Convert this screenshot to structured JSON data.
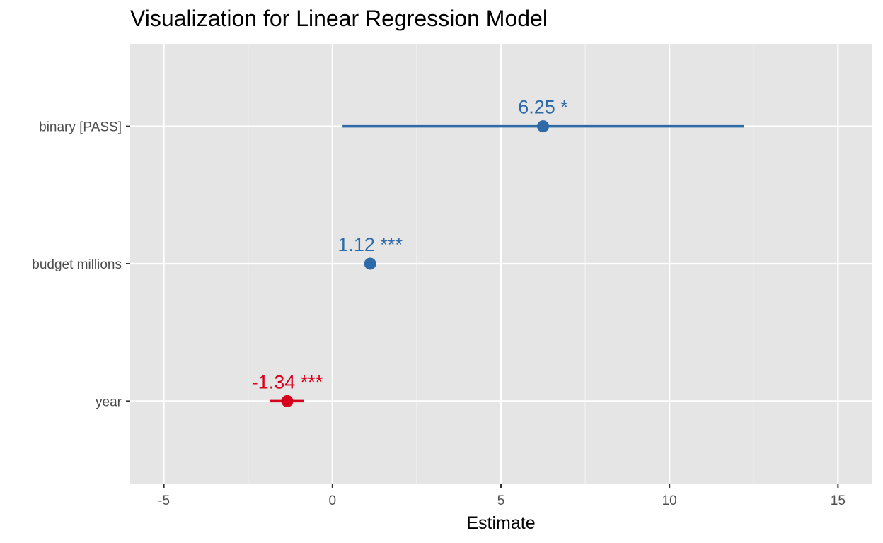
{
  "chart_data": {
    "type": "forest",
    "title": "Visualization for Linear Regression Model",
    "xlabel": "Estimate",
    "ylabel": "",
    "xlim": [
      -6,
      16
    ],
    "x_ticks": [
      -5,
      0,
      5,
      10,
      15
    ],
    "x_tick_labels": [
      "-5",
      "0",
      "5",
      "10",
      "15"
    ],
    "grid": true,
    "legend": "none",
    "background_color": "#e5e5e5",
    "colors": {
      "positive": "#2e6aa8",
      "negative": "#d7001c"
    },
    "terms": [
      {
        "name": "binary [PASS]",
        "estimate": 6.25,
        "ci_low": 0.3,
        "ci_high": 12.2,
        "label": "6.25 *",
        "sign": "positive"
      },
      {
        "name": "budget millions",
        "estimate": 1.12,
        "ci_low": 1.12,
        "ci_high": 1.12,
        "label": "1.12 ***",
        "sign": "positive"
      },
      {
        "name": "year",
        "estimate": -1.34,
        "ci_low": -1.85,
        "ci_high": -0.85,
        "label": "-1.34 ***",
        "sign": "negative"
      }
    ]
  }
}
